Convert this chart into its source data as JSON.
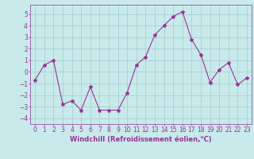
{
  "x": [
    0,
    1,
    2,
    3,
    4,
    5,
    6,
    7,
    8,
    9,
    10,
    11,
    12,
    13,
    14,
    15,
    16,
    17,
    18,
    19,
    20,
    21,
    22,
    23
  ],
  "y": [
    -0.7,
    0.6,
    1.0,
    -2.8,
    -2.5,
    -3.3,
    -1.3,
    -3.3,
    -3.3,
    -3.3,
    -1.8,
    0.6,
    1.3,
    3.2,
    4.0,
    4.8,
    5.2,
    2.8,
    1.5,
    -0.9,
    0.2,
    0.8,
    -1.1,
    -0.5
  ],
  "line_color": "#993399",
  "marker": "*",
  "marker_size": 3,
  "bg_color": "#c8eaea",
  "grid_color": "#a0cccc",
  "xlabel": "Windchill (Refroidissement éolien,°C)",
  "xlabel_fontsize": 6,
  "tick_fontsize": 5.5,
  "ylim": [
    -4.5,
    5.8
  ],
  "xlim": [
    -0.5,
    23.5
  ],
  "yticks": [
    -4,
    -3,
    -2,
    -1,
    0,
    1,
    2,
    3,
    4,
    5
  ],
  "xticks": [
    0,
    1,
    2,
    3,
    4,
    5,
    6,
    7,
    8,
    9,
    10,
    11,
    12,
    13,
    14,
    15,
    16,
    17,
    18,
    19,
    20,
    21,
    22,
    23
  ]
}
